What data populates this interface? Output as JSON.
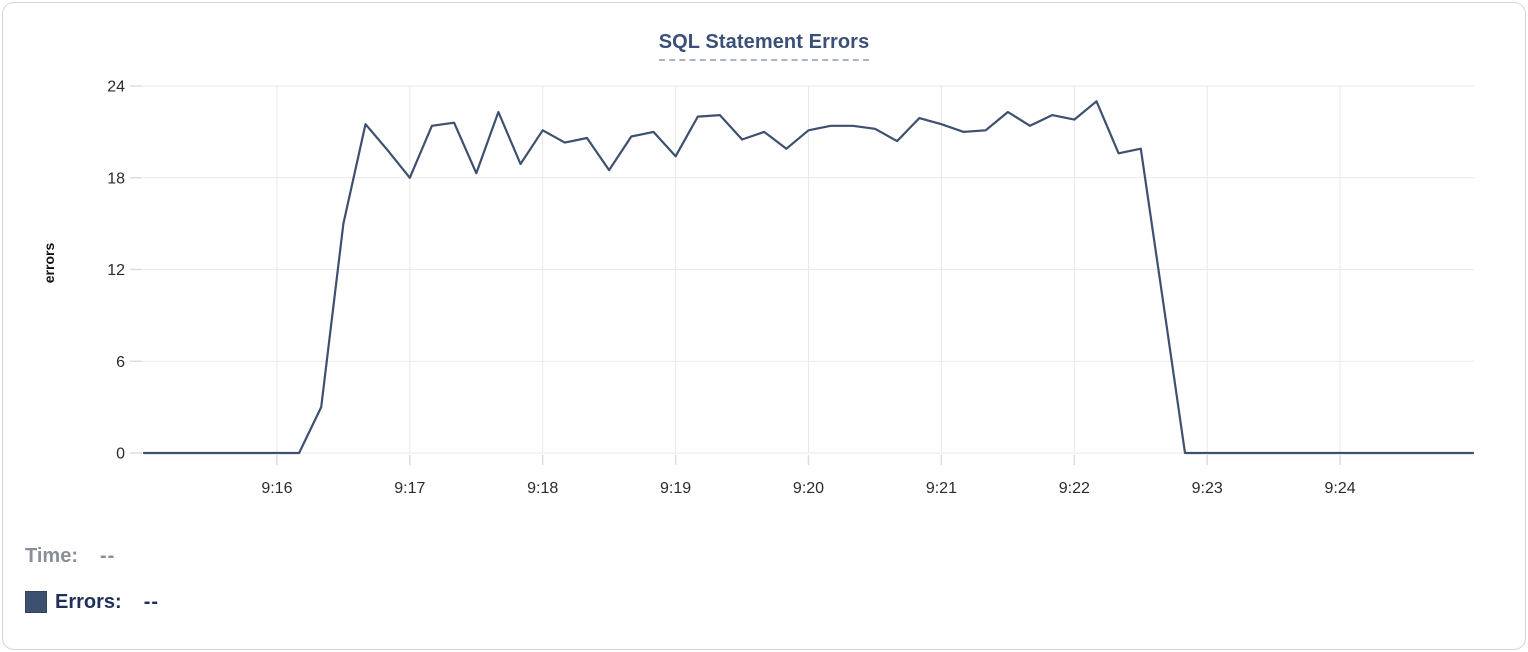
{
  "chart_data": {
    "type": "line",
    "title": "SQL Statement Errors",
    "xlabel": "",
    "ylabel": "errors",
    "grid": true,
    "legend_position": "bottom-left",
    "ylim": [
      0,
      24
    ],
    "yticks": [
      0,
      6,
      12,
      18,
      24
    ],
    "x_tick_labels": [
      "9:16",
      "9:17",
      "9:18",
      "9:19",
      "9:20",
      "9:21",
      "9:22",
      "9:23",
      "9:24"
    ],
    "x_tick_seconds": [
      60,
      120,
      180,
      240,
      300,
      360,
      420,
      480,
      540
    ],
    "x_domain_seconds": [
      0,
      600
    ],
    "series": [
      {
        "name": "Errors",
        "color": "#3e506f",
        "times": [
          "9:15:00",
          "9:15:10",
          "9:15:20",
          "9:15:30",
          "9:15:40",
          "9:15:50",
          "9:16:00",
          "9:16:10",
          "9:16:20",
          "9:16:30",
          "9:16:40",
          "9:16:50",
          "9:17:00",
          "9:17:10",
          "9:17:20",
          "9:17:30",
          "9:17:40",
          "9:17:50",
          "9:18:00",
          "9:18:10",
          "9:18:20",
          "9:18:30",
          "9:18:40",
          "9:18:50",
          "9:19:00",
          "9:19:10",
          "9:19:20",
          "9:19:30",
          "9:19:40",
          "9:19:50",
          "9:20:00",
          "9:20:10",
          "9:20:20",
          "9:20:30",
          "9:20:40",
          "9:20:50",
          "9:21:00",
          "9:21:10",
          "9:21:20",
          "9:21:30",
          "9:21:40",
          "9:21:50",
          "9:22:00",
          "9:22:10",
          "9:22:20",
          "9:22:30",
          "9:22:40",
          "9:22:50",
          "9:23:00",
          "9:23:10",
          "9:23:20",
          "9:23:30",
          "9:23:40",
          "9:23:50",
          "9:24:00",
          "9:24:10",
          "9:24:20",
          "9:24:30",
          "9:24:40",
          "9:24:50",
          "9:25:00"
        ],
        "values": [
          0,
          0,
          0,
          0,
          0,
          0,
          0,
          0,
          3,
          15,
          21.5,
          19.8,
          18,
          21.4,
          21.6,
          18.3,
          22.3,
          18.9,
          21.1,
          20.3,
          20.6,
          18.5,
          20.7,
          21,
          19.4,
          22,
          22.1,
          20.5,
          21,
          19.9,
          21.1,
          21.4,
          21.4,
          21.2,
          20.4,
          21.9,
          21.5,
          21,
          21.1,
          22.3,
          21.4,
          22.1,
          21.8,
          23,
          19.6,
          19.9,
          10,
          0,
          0,
          0,
          0,
          0,
          0,
          0,
          0,
          0,
          0,
          0,
          0,
          0,
          0
        ]
      }
    ]
  },
  "legend": {
    "time_label": "Time:",
    "time_value": "--",
    "errors_label": "Errors:",
    "errors_value": "--",
    "swatch_color": "#3e506f"
  },
  "colors": {
    "title": "#3b5077",
    "title_underline": "#a9b4c9",
    "line": "#3e506f",
    "gridline": "#e9e9e9",
    "tick_mark": "#dddddd",
    "tick_label": "#2b2b2b",
    "legend_time": "#898e98",
    "legend_errors": "#20305a",
    "card_border": "#d6d6d6"
  }
}
